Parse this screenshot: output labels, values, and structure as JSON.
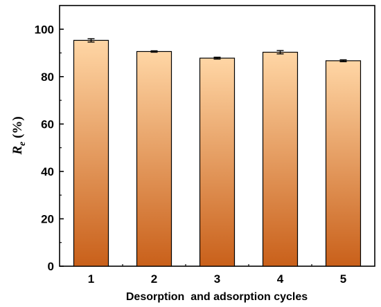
{
  "chart_data": {
    "type": "bar",
    "categories": [
      "1",
      "2",
      "3",
      "4",
      "5"
    ],
    "values": [
      95.3,
      90.6,
      87.8,
      90.3,
      86.7
    ],
    "errors": [
      0.7,
      0.3,
      0.4,
      0.7,
      0.4
    ],
    "xlabel": "Desorption  and adsorption cycles",
    "ylabel_main": "R",
    "ylabel_sub": "e",
    "ylabel_unit": " (%)",
    "ylim": [
      0,
      110
    ],
    "yticks": [
      "0",
      "20",
      "40",
      "60",
      "80",
      "100"
    ],
    "grid": false,
    "bar_colors": {
      "top": "#FFD6A5",
      "bottom": "#C9601A"
    }
  }
}
